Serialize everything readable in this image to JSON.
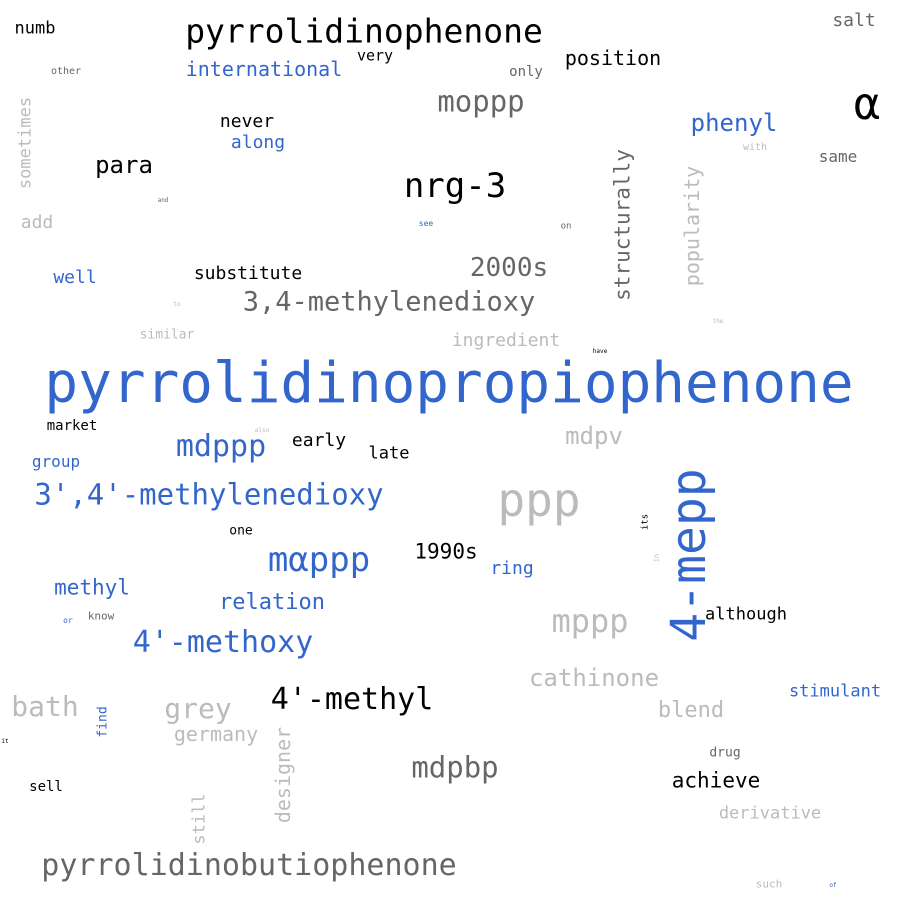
{
  "palette": {
    "blue": "#3366cc",
    "black": "#000000",
    "darkgrey": "#666666",
    "lightgrey": "#bbbbbb"
  },
  "words": [
    {
      "text": "pyrrolidinopropiophenone",
      "color": "#3366cc",
      "orientation": "horizontal"
    },
    {
      "text": "4-mepp",
      "color": "#3366cc",
      "orientation": "vertical"
    },
    {
      "text": "ppp",
      "color": "#bbbbbb",
      "orientation": "horizontal"
    },
    {
      "text": "α",
      "color": "#000000",
      "orientation": "horizontal"
    },
    {
      "text": "pyrrolidinophenone",
      "color": "#000000",
      "orientation": "horizontal"
    },
    {
      "text": "pyrrolidinobutiophenone",
      "color": "#666666",
      "orientation": "horizontal"
    },
    {
      "text": "nrg-3",
      "color": "#000000",
      "orientation": "horizontal"
    },
    {
      "text": "mαppp",
      "color": "#3366cc",
      "orientation": "horizontal"
    },
    {
      "text": "moppp",
      "color": "#666666",
      "orientation": "horizontal"
    },
    {
      "text": "mdpbp",
      "color": "#666666",
      "orientation": "horizontal"
    },
    {
      "text": "mppp",
      "color": "#bbbbbb",
      "orientation": "horizontal"
    },
    {
      "text": "4'-methyl",
      "color": "#000000",
      "orientation": "horizontal"
    },
    {
      "text": "4'-methoxy",
      "color": "#3366cc",
      "orientation": "horizontal"
    },
    {
      "text": "3',4'-methylenedioxy",
      "color": "#3366cc",
      "orientation": "horizontal"
    },
    {
      "text": "3,4-methylenedioxy",
      "color": "#666666",
      "orientation": "horizontal"
    },
    {
      "text": "mdppp",
      "color": "#3366cc",
      "orientation": "horizontal"
    },
    {
      "text": "bath",
      "color": "#bbbbbb",
      "orientation": "horizontal"
    },
    {
      "text": "grey",
      "color": "#bbbbbb",
      "orientation": "horizontal"
    },
    {
      "text": "cathinone",
      "color": "#bbbbbb",
      "orientation": "horizontal"
    },
    {
      "text": "2000s",
      "color": "#666666",
      "orientation": "horizontal"
    },
    {
      "text": "mdpv",
      "color": "#bbbbbb",
      "orientation": "horizontal"
    },
    {
      "text": "phenyl",
      "color": "#3366cc",
      "orientation": "horizontal"
    },
    {
      "text": "para",
      "color": "#000000",
      "orientation": "horizontal"
    },
    {
      "text": "structurally",
      "color": "#666666",
      "orientation": "vertical"
    },
    {
      "text": "popularity",
      "color": "#bbbbbb",
      "orientation": "vertical"
    },
    {
      "text": "1990s",
      "color": "#000000",
      "orientation": "horizontal"
    },
    {
      "text": "relation",
      "color": "#3366cc",
      "orientation": "horizontal"
    },
    {
      "text": "blend",
      "color": "#bbbbbb",
      "orientation": "horizontal"
    },
    {
      "text": "achieve",
      "color": "#000000",
      "orientation": "horizontal"
    },
    {
      "text": "position",
      "color": "#000000",
      "orientation": "horizontal"
    },
    {
      "text": "international",
      "color": "#3366cc",
      "orientation": "horizontal"
    },
    {
      "text": "methyl",
      "color": "#3366cc",
      "orientation": "horizontal"
    },
    {
      "text": "germany",
      "color": "#bbbbbb",
      "orientation": "horizontal"
    },
    {
      "text": "designer",
      "color": "#bbbbbb",
      "orientation": "vertical"
    },
    {
      "text": "ingredient",
      "color": "#bbbbbb",
      "orientation": "horizontal"
    },
    {
      "text": "substitute",
      "color": "#000000",
      "orientation": "horizontal"
    },
    {
      "text": "stimulant",
      "color": "#3366cc",
      "orientation": "horizontal"
    },
    {
      "text": "never",
      "color": "#000000",
      "orientation": "horizontal"
    },
    {
      "text": "along",
      "color": "#3366cc",
      "orientation": "horizontal"
    },
    {
      "text": "salt",
      "color": "#666666",
      "orientation": "horizontal"
    },
    {
      "text": "sometimes",
      "color": "#bbbbbb",
      "orientation": "vertical"
    },
    {
      "text": "numb",
      "color": "#000000",
      "orientation": "horizontal"
    },
    {
      "text": "early",
      "color": "#000000",
      "orientation": "horizontal"
    },
    {
      "text": "late",
      "color": "#000000",
      "orientation": "horizontal"
    },
    {
      "text": "well",
      "color": "#3366cc",
      "orientation": "horizontal"
    },
    {
      "text": "add",
      "color": "#bbbbbb",
      "orientation": "horizontal"
    },
    {
      "text": "ring",
      "color": "#3366cc",
      "orientation": "horizontal"
    },
    {
      "text": "although",
      "color": "#000000",
      "orientation": "horizontal"
    },
    {
      "text": "derivative",
      "color": "#bbbbbb",
      "orientation": "horizontal"
    },
    {
      "text": "same",
      "color": "#666666",
      "orientation": "horizontal"
    },
    {
      "text": "still",
      "color": "#bbbbbb",
      "orientation": "vertical"
    },
    {
      "text": "group",
      "color": "#3366cc",
      "orientation": "horizontal"
    },
    {
      "text": "market",
      "color": "#000000",
      "orientation": "horizontal"
    },
    {
      "text": "very",
      "color": "#000000",
      "orientation": "horizontal"
    },
    {
      "text": "only",
      "color": "#666666",
      "orientation": "horizontal"
    },
    {
      "text": "sell",
      "color": "#000000",
      "orientation": "horizontal"
    },
    {
      "text": "drug",
      "color": "#666666",
      "orientation": "horizontal"
    },
    {
      "text": "similar",
      "color": "#bbbbbb",
      "orientation": "horizontal"
    },
    {
      "text": "one",
      "color": "#000000",
      "orientation": "horizontal"
    },
    {
      "text": "find",
      "color": "#3366cc",
      "orientation": "vertical"
    },
    {
      "text": "know",
      "color": "#666666",
      "orientation": "horizontal"
    },
    {
      "text": "such",
      "color": "#bbbbbb",
      "orientation": "horizontal"
    },
    {
      "text": "other",
      "color": "#666666",
      "orientation": "horizontal"
    },
    {
      "text": "with",
      "color": "#bbbbbb",
      "orientation": "horizontal"
    },
    {
      "text": "on",
      "color": "#666666",
      "orientation": "horizontal"
    },
    {
      "text": "its",
      "color": "#000000",
      "orientation": "vertical"
    },
    {
      "text": "see",
      "color": "#3366cc",
      "orientation": "horizontal"
    },
    {
      "text": "or",
      "color": "#3366cc",
      "orientation": "horizontal"
    },
    {
      "text": "in",
      "color": "#bbbbbb",
      "orientation": "vertical"
    },
    {
      "text": "and",
      "color": "#666666",
      "orientation": "horizontal"
    },
    {
      "text": "to",
      "color": "#bbbbbb",
      "orientation": "horizontal"
    },
    {
      "text": "the",
      "color": "#bbbbbb",
      "orientation": "horizontal"
    },
    {
      "text": "have",
      "color": "#000000",
      "orientation": "horizontal"
    },
    {
      "text": "also",
      "color": "#bbbbbb",
      "orientation": "horizontal"
    },
    {
      "text": "it",
      "color": "#000000",
      "orientation": "horizontal"
    },
    {
      "text": "of",
      "color": "#3366cc",
      "orientation": "horizontal"
    }
  ]
}
